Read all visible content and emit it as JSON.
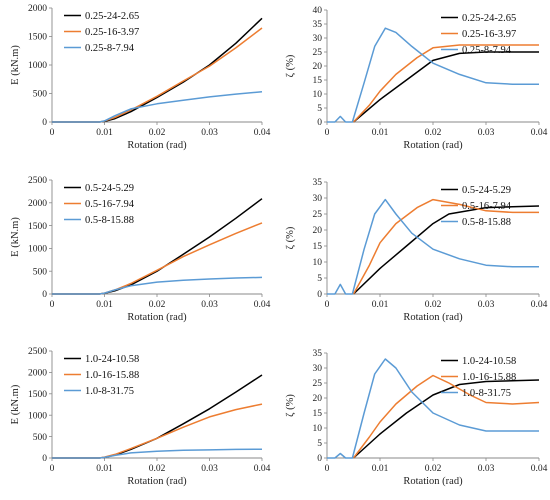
{
  "colors": {
    "black": "#000000",
    "orange": "#ED7D31",
    "blue": "#5B9BD5"
  },
  "chart_data": [
    {
      "type": "line",
      "xlabel": "Rotation (rad)",
      "ylabel": "E (kN.m)",
      "xlim": [
        0,
        0.04
      ],
      "ylim": [
        0,
        2000
      ],
      "xticks": [
        "0",
        "0.01",
        "0.02",
        "0.03",
        "0.04"
      ],
      "yticks": [
        "0",
        "500",
        "1000",
        "1500",
        "2000"
      ],
      "legend": "top-left",
      "series": [
        {
          "name": "0.25-24-2.65",
          "color": "black",
          "points": [
            [
              0,
              0
            ],
            [
              0.009,
              0
            ],
            [
              0.01,
              10
            ],
            [
              0.012,
              60
            ],
            [
              0.015,
              180
            ],
            [
              0.02,
              430
            ],
            [
              0.025,
              700
            ],
            [
              0.03,
              1000
            ],
            [
              0.035,
              1380
            ],
            [
              0.04,
              1820
            ]
          ]
        },
        {
          "name": "0.25-16-3.97",
          "color": "orange",
          "points": [
            [
              0,
              0
            ],
            [
              0.009,
              0
            ],
            [
              0.01,
              15
            ],
            [
              0.012,
              80
            ],
            [
              0.015,
              210
            ],
            [
              0.02,
              450
            ],
            [
              0.025,
              720
            ],
            [
              0.03,
              980
            ],
            [
              0.035,
              1300
            ],
            [
              0.04,
              1650
            ]
          ]
        },
        {
          "name": "0.25-8-7.94",
          "color": "blue",
          "points": [
            [
              0,
              0
            ],
            [
              0.009,
              0
            ],
            [
              0.01,
              20
            ],
            [
              0.012,
              110
            ],
            [
              0.015,
              230
            ],
            [
              0.02,
              320
            ],
            [
              0.025,
              380
            ],
            [
              0.03,
              440
            ],
            [
              0.035,
              490
            ],
            [
              0.04,
              530
            ]
          ]
        }
      ]
    },
    {
      "type": "line",
      "xlabel": "Rotation (rad)",
      "ylabel": "ζ (%)",
      "xlim": [
        0,
        0.04
      ],
      "ylim": [
        0,
        40
      ],
      "xticks": [
        "0",
        "0.01",
        "0.02",
        "0.03",
        "0.04"
      ],
      "yticks": [
        "0",
        "5",
        "10",
        "15",
        "20",
        "25",
        "30",
        "35",
        "40"
      ],
      "legend": "top-right",
      "series": [
        {
          "name": "0.25-24-2.65",
          "color": "black",
          "points": [
            [
              0.005,
              0
            ],
            [
              0.01,
              8
            ],
            [
              0.015,
              15
            ],
            [
              0.02,
              22
            ],
            [
              0.025,
              24.5
            ],
            [
              0.03,
              25
            ],
            [
              0.035,
              25
            ],
            [
              0.04,
              25
            ]
          ]
        },
        {
          "name": "0.25-16-3.97",
          "color": "orange",
          "points": [
            [
              0.005,
              0
            ],
            [
              0.008,
              6
            ],
            [
              0.01,
              11
            ],
            [
              0.013,
              17
            ],
            [
              0.017,
              23
            ],
            [
              0.02,
              26.5
            ],
            [
              0.025,
              27.5
            ],
            [
              0.03,
              27.5
            ],
            [
              0.04,
              27.5
            ]
          ]
        },
        {
          "name": "0.25-8-7.94",
          "color": "blue",
          "points": [
            [
              0,
              0
            ],
            [
              0.0015,
              0
            ],
            [
              0.0025,
              2
            ],
            [
              0.0035,
              0
            ],
            [
              0.0048,
              0
            ],
            [
              0.007,
              14
            ],
            [
              0.009,
              27
            ],
            [
              0.011,
              33.5
            ],
            [
              0.013,
              32
            ],
            [
              0.016,
              27
            ],
            [
              0.02,
              21
            ],
            [
              0.025,
              17
            ],
            [
              0.03,
              14
            ],
            [
              0.035,
              13.5
            ],
            [
              0.04,
              13.5
            ]
          ]
        }
      ]
    },
    {
      "type": "line",
      "xlabel": "Rotation (rad)",
      "ylabel": "E (kN.m)",
      "xlim": [
        0,
        0.04
      ],
      "ylim": [
        0,
        2500
      ],
      "xticks": [
        "0",
        "0.01",
        "0.02",
        "0.03",
        "0.04"
      ],
      "yticks": [
        "0",
        "500",
        "1000",
        "1500",
        "2000",
        "2500"
      ],
      "legend": "top-left",
      "series": [
        {
          "name": "0.5-24-5.29",
          "color": "black",
          "points": [
            [
              0,
              0
            ],
            [
              0.009,
              0
            ],
            [
              0.01,
              15
            ],
            [
              0.012,
              70
            ],
            [
              0.015,
              200
            ],
            [
              0.02,
              500
            ],
            [
              0.025,
              870
            ],
            [
              0.03,
              1250
            ],
            [
              0.035,
              1660
            ],
            [
              0.04,
              2090
            ]
          ]
        },
        {
          "name": "0.5-16-7.94",
          "color": "orange",
          "points": [
            [
              0,
              0
            ],
            [
              0.009,
              0
            ],
            [
              0.01,
              20
            ],
            [
              0.012,
              90
            ],
            [
              0.015,
              230
            ],
            [
              0.02,
              520
            ],
            [
              0.025,
              820
            ],
            [
              0.03,
              1080
            ],
            [
              0.035,
              1330
            ],
            [
              0.04,
              1560
            ]
          ]
        },
        {
          "name": "0.5-8-15.88",
          "color": "blue",
          "points": [
            [
              0,
              0
            ],
            [
              0.009,
              0
            ],
            [
              0.01,
              20
            ],
            [
              0.012,
              90
            ],
            [
              0.015,
              180
            ],
            [
              0.02,
              260
            ],
            [
              0.025,
              300
            ],
            [
              0.03,
              330
            ],
            [
              0.035,
              350
            ],
            [
              0.04,
              365
            ]
          ]
        }
      ]
    },
    {
      "type": "line",
      "xlabel": "Rotation (rad)",
      "ylabel": "ζ (%)",
      "xlim": [
        0,
        0.04
      ],
      "ylim": [
        0,
        35
      ],
      "xticks": [
        "0",
        "0.01",
        "0.02",
        "0.03",
        "0.04"
      ],
      "yticks": [
        "0",
        "5",
        "10",
        "15",
        "20",
        "25",
        "30",
        "35"
      ],
      "legend": "top-right",
      "series": [
        {
          "name": "0.5-24-5.29",
          "color": "black",
          "points": [
            [
              0.005,
              0
            ],
            [
              0.01,
              8
            ],
            [
              0.015,
              15
            ],
            [
              0.02,
              22
            ],
            [
              0.023,
              25
            ],
            [
              0.03,
              27
            ],
            [
              0.04,
              27.5
            ]
          ]
        },
        {
          "name": "0.5-16-7.94",
          "color": "orange",
          "points": [
            [
              0.005,
              0
            ],
            [
              0.008,
              9
            ],
            [
              0.01,
              16
            ],
            [
              0.013,
              22
            ],
            [
              0.017,
              27
            ],
            [
              0.02,
              29.5
            ],
            [
              0.025,
              28
            ],
            [
              0.03,
              26
            ],
            [
              0.035,
              25.5
            ],
            [
              0.04,
              25.5
            ]
          ]
        },
        {
          "name": "0.5-8-15.88",
          "color": "blue",
          "points": [
            [
              0,
              0
            ],
            [
              0.0015,
              0
            ],
            [
              0.0025,
              3
            ],
            [
              0.0035,
              0
            ],
            [
              0.0048,
              0
            ],
            [
              0.007,
              14
            ],
            [
              0.009,
              25
            ],
            [
              0.011,
              29.5
            ],
            [
              0.013,
              25
            ],
            [
              0.016,
              19
            ],
            [
              0.02,
              14
            ],
            [
              0.025,
              11
            ],
            [
              0.03,
              9
            ],
            [
              0.035,
              8.5
            ],
            [
              0.04,
              8.5
            ]
          ]
        }
      ]
    },
    {
      "type": "line",
      "xlabel": "Rotation (rad)",
      "ylabel": "E (kN.m)",
      "xlim": [
        0,
        0.04
      ],
      "ylim": [
        0,
        2500
      ],
      "xticks": [
        "0",
        "0.01",
        "0.02",
        "0.03",
        "0.04"
      ],
      "yticks": [
        "0",
        "500",
        "1000",
        "1500",
        "2000",
        "2500"
      ],
      "legend": "top-left",
      "series": [
        {
          "name": "1.0-24-10.58",
          "color": "black",
          "points": [
            [
              0,
              0
            ],
            [
              0.009,
              0
            ],
            [
              0.01,
              15
            ],
            [
              0.012,
              70
            ],
            [
              0.015,
              200
            ],
            [
              0.02,
              460
            ],
            [
              0.025,
              800
            ],
            [
              0.03,
              1150
            ],
            [
              0.035,
              1540
            ],
            [
              0.04,
              1940
            ]
          ]
        },
        {
          "name": "1.0-16-15.88",
          "color": "orange",
          "points": [
            [
              0,
              0
            ],
            [
              0.009,
              0
            ],
            [
              0.01,
              20
            ],
            [
              0.012,
              85
            ],
            [
              0.015,
              220
            ],
            [
              0.02,
              460
            ],
            [
              0.025,
              720
            ],
            [
              0.03,
              960
            ],
            [
              0.035,
              1130
            ],
            [
              0.04,
              1260
            ]
          ]
        },
        {
          "name": "1.0-8-31.75",
          "color": "blue",
          "points": [
            [
              0,
              0
            ],
            [
              0.009,
              0
            ],
            [
              0.01,
              15
            ],
            [
              0.012,
              60
            ],
            [
              0.015,
              120
            ],
            [
              0.02,
              160
            ],
            [
              0.025,
              180
            ],
            [
              0.03,
              190
            ],
            [
              0.035,
              200
            ],
            [
              0.04,
              205
            ]
          ]
        }
      ]
    },
    {
      "type": "line",
      "xlabel": "Rotation (rad)",
      "ylabel": "ζ (%)",
      "xlim": [
        0,
        0.04
      ],
      "ylim": [
        0,
        35
      ],
      "xticks": [
        "0",
        "0.01",
        "0.02",
        "0.03",
        "0.04"
      ],
      "yticks": [
        "0",
        "5",
        "10",
        "15",
        "20",
        "25",
        "30",
        "35"
      ],
      "legend": "top-right",
      "series": [
        {
          "name": "1.0-24-10.58",
          "color": "black",
          "points": [
            [
              0.005,
              0
            ],
            [
              0.01,
              8
            ],
            [
              0.015,
              15
            ],
            [
              0.02,
              21
            ],
            [
              0.025,
              24.5
            ],
            [
              0.03,
              25.5
            ],
            [
              0.04,
              26
            ]
          ]
        },
        {
          "name": "1.0-16-15.88",
          "color": "orange",
          "points": [
            [
              0.005,
              0
            ],
            [
              0.008,
              7
            ],
            [
              0.01,
              12
            ],
            [
              0.013,
              18
            ],
            [
              0.017,
              24
            ],
            [
              0.02,
              27.5
            ],
            [
              0.023,
              25
            ],
            [
              0.027,
              21
            ],
            [
              0.03,
              18.5
            ],
            [
              0.035,
              18
            ],
            [
              0.04,
              18.5
            ]
          ]
        },
        {
          "name": "1.0-8-31.75",
          "color": "blue",
          "points": [
            [
              0,
              0
            ],
            [
              0.0015,
              0
            ],
            [
              0.0025,
              1.5
            ],
            [
              0.0035,
              0
            ],
            [
              0.0048,
              0
            ],
            [
              0.007,
              15
            ],
            [
              0.009,
              28
            ],
            [
              0.011,
              33
            ],
            [
              0.013,
              30
            ],
            [
              0.016,
              22
            ],
            [
              0.02,
              15
            ],
            [
              0.025,
              11
            ],
            [
              0.03,
              9
            ],
            [
              0.035,
              9
            ],
            [
              0.04,
              9
            ]
          ]
        }
      ]
    }
  ]
}
